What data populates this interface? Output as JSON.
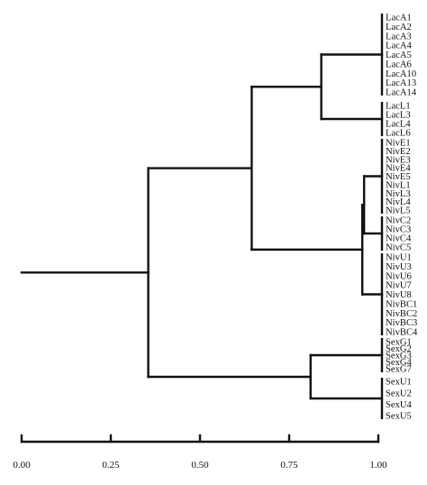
{
  "colors": {
    "lines": "#111111",
    "background": "#ffffff"
  },
  "chart_data": {
    "type": "dendrogram",
    "orientation": "horizontal",
    "axis": {
      "range": [
        0,
        1
      ],
      "ticks": [
        0,
        0.25,
        0.5,
        0.75,
        1
      ],
      "tick_labels": [
        "0.00",
        "0.25",
        "0.50",
        "0.75",
        "1.00"
      ]
    },
    "leaf_groups": [
      {
        "labels": [
          "LacA1",
          "LacA2",
          "LacA3",
          "LacA4",
          "LacA5",
          "LacA6",
          "LacA10",
          "LacA13",
          "LacA14"
        ]
      },
      {
        "labels": [
          "LacL1",
          "LacL3",
          "LacL4",
          "LacL6"
        ]
      },
      {
        "labels": [
          "NivE1",
          "NivE2",
          "NivE3",
          "NivE4",
          "NivE5",
          "NivL1",
          "NivL3",
          "NivL4",
          "NivL5"
        ]
      },
      {
        "labels": [
          "NivC2",
          "NivC3",
          "NivC4",
          "NivC5"
        ]
      },
      {
        "labels": [
          "NivU1",
          "NivU3",
          "NivU6",
          "NivU7",
          "NivU8",
          "NivBC1",
          "NivBC2",
          "NivBC3",
          "NivBC4"
        ]
      },
      {
        "labels": [
          "SexG1",
          "SexG2",
          "SexG3",
          "SexG4",
          "SexG7"
        ]
      },
      {
        "labels": [
          "SexU1",
          "SexU2",
          "SexU4",
          "SexU5"
        ]
      }
    ],
    "merges": [
      {
        "id": "Nec",
        "children": [
          "g2",
          "g3"
        ],
        "height": 0.96
      },
      {
        "id": "Nivp",
        "children": [
          "Nec",
          "g4"
        ],
        "height": 0.955
      },
      {
        "id": "Lac",
        "children": [
          "g0",
          "g1"
        ],
        "height": 0.84
      },
      {
        "id": "Sex",
        "children": [
          "g5",
          "g6"
        ],
        "height": 0.81
      },
      {
        "id": "LacNiv",
        "children": [
          "Lac",
          "Nivp"
        ],
        "height": 0.645
      },
      {
        "id": "Root",
        "children": [
          "LacNiv",
          "Sex"
        ],
        "height": 0.355
      }
    ],
    "root_stem_start": 0.0
  }
}
